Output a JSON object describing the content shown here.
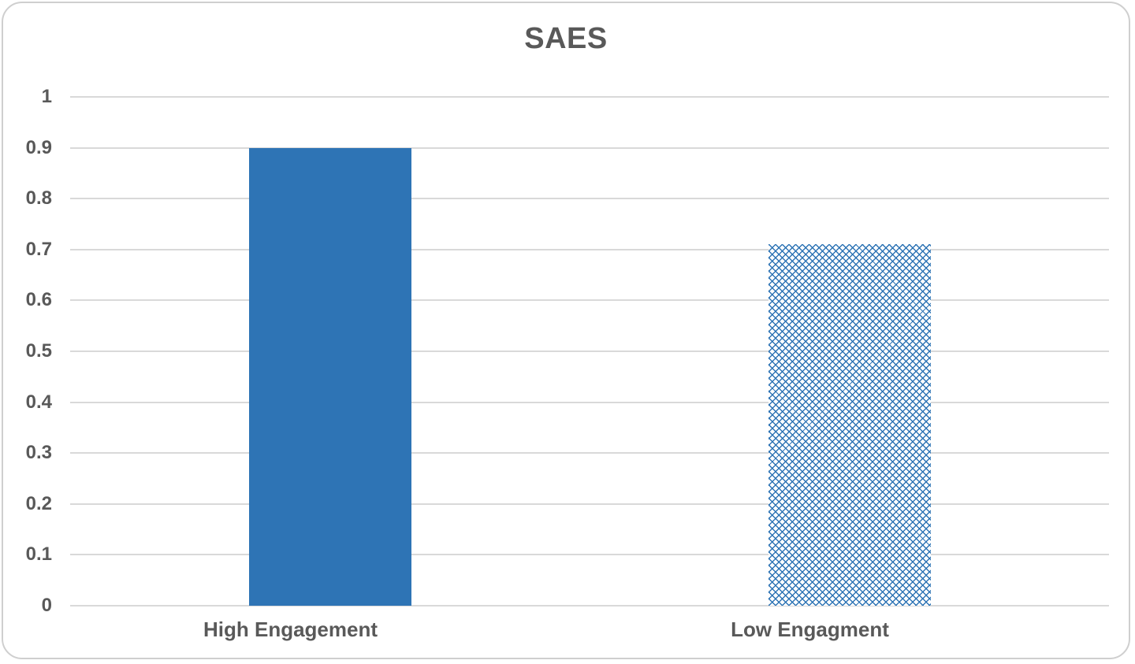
{
  "chart_data": {
    "type": "bar",
    "title": "SAES",
    "categories": [
      "High Engagement",
      "Low Engagment"
    ],
    "values": [
      0.9,
      0.71
    ],
    "series": [
      {
        "name": "SAES",
        "values": [
          0.9,
          0.71
        ]
      }
    ],
    "xlabel": "",
    "ylabel": "",
    "ylim": [
      0,
      1
    ],
    "yticks": [
      0,
      0.1,
      0.2,
      0.3,
      0.4,
      0.5,
      0.6,
      0.7,
      0.8,
      0.9,
      1
    ],
    "ytick_labels": [
      "0",
      "0.1",
      "0.2",
      "0.3",
      "0.4",
      "0.5",
      "0.6",
      "0.7",
      "0.8",
      "0.9",
      "1"
    ],
    "grid": "horizontal",
    "legend": "none",
    "bar_styles": [
      {
        "fill": "solid",
        "color": "#2E74B5"
      },
      {
        "fill": "diagonal-crosshatch",
        "color": "#2E74B5",
        "background": "#FFFFFF"
      }
    ]
  },
  "colors": {
    "bar_blue": "#2E74B5",
    "text": "#595959",
    "gridline": "#D9D9D9",
    "frame_border": "#CFCFCF",
    "background": "#FFFFFF"
  }
}
